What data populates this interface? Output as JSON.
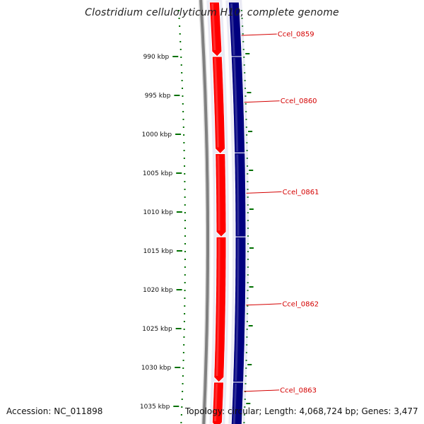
{
  "title": "Clostridium cellulolyticum H10, complete genome",
  "footer": {
    "accession": "Accession: NC_011898",
    "summary": "Topology: circular; Length: 4,068,724 bp; Genes: 3,477"
  },
  "colors": {
    "forward_strand": "#ff0000",
    "reverse_strand": "#00007f",
    "backbone": "#808080",
    "ticks": "#007000",
    "gene_label": "#d40000"
  },
  "ticks": [
    {
      "label": "990 kbp",
      "kbp": 990
    },
    {
      "label": "995 kbp",
      "kbp": 995
    },
    {
      "label": "1000 kbp",
      "kbp": 1000
    },
    {
      "label": "1005 kbp",
      "kbp": 1005
    },
    {
      "label": "1010 kbp",
      "kbp": 1010
    },
    {
      "label": "1015 kbp",
      "kbp": 1015
    },
    {
      "label": "1020 kbp",
      "kbp": 1020
    },
    {
      "label": "1025 kbp",
      "kbp": 1025
    },
    {
      "label": "1030 kbp",
      "kbp": 1030
    },
    {
      "label": "1035 kbp",
      "kbp": 1035
    }
  ],
  "genes": [
    {
      "label": "Ccel_0859",
      "strand": "forward",
      "start_kbp": 983,
      "end_kbp": 990
    },
    {
      "label": "Ccel_0860",
      "strand": "forward",
      "start_kbp": 990,
      "end_kbp": 1002.5
    },
    {
      "label": "Ccel_0861",
      "strand": "forward",
      "start_kbp": 1002.5,
      "end_kbp": 1013.2
    },
    {
      "label": "Ccel_0862",
      "strand": "reverse",
      "start_kbp": 990,
      "end_kbp": 1002.4
    },
    {
      "label": "Ccel_0862",
      "strand": "reverse",
      "start_kbp": 1002.4,
      "end_kbp": 1013.2
    },
    {
      "label": "Ccel_0862",
      "strand": "forward",
      "start_kbp": 1013.2,
      "end_kbp": 1031.9
    },
    {
      "label": "Ccel_0862",
      "strand": "reverse",
      "start_kbp": 1013.2,
      "end_kbp": 1031.9
    },
    {
      "label": "Ccel_0863",
      "strand": "forward",
      "start_kbp": 1031.9,
      "end_kbp": 1040
    },
    {
      "label": "Ccel_0863",
      "strand": "reverse",
      "start_kbp": 1031.9,
      "end_kbp": 1040
    },
    {
      "label": "Ccel_0859",
      "strand": "reverse",
      "start_kbp": 983,
      "end_kbp": 990
    }
  ],
  "gene_labels": [
    {
      "label": "Ccel_0859",
      "kbp": 987.1
    },
    {
      "label": "Ccel_0860",
      "kbp": 995.7
    },
    {
      "label": "Ccel_0861",
      "kbp": 1007.4
    },
    {
      "label": "Ccel_0862",
      "kbp": 1021.8
    },
    {
      "label": "Ccel_0863",
      "kbp": 1032.9
    }
  ]
}
